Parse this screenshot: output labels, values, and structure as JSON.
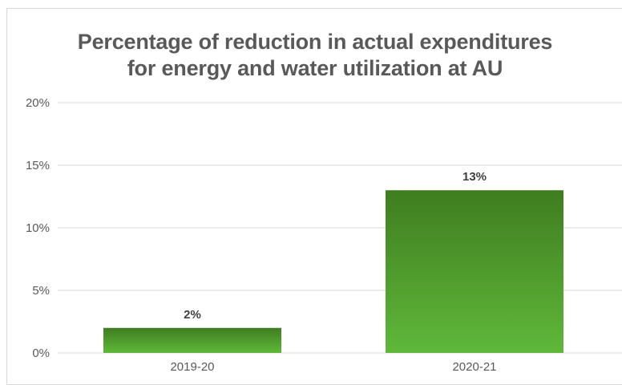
{
  "chart_data": {
    "type": "bar",
    "title_line1": "Percentage of reduction in actual expenditures",
    "title_line2": "for energy and water utilization at AU",
    "categories": [
      "2019-20",
      "2020-21"
    ],
    "values": [
      2,
      13
    ],
    "data_labels": [
      "2%",
      "13%"
    ],
    "y_ticks": [
      "0%",
      "5%",
      "10%",
      "15%",
      "20%"
    ],
    "y_tick_values": [
      0,
      5,
      10,
      15,
      20
    ],
    "ylim": [
      0,
      20
    ],
    "xlabel": "",
    "ylabel": "",
    "grid": true,
    "legend": "none",
    "colors": {
      "bar_top": "#3f7d1f",
      "bar_bottom": "#5fb83a",
      "grid": "#d9d9d9",
      "text": "#595959"
    }
  }
}
